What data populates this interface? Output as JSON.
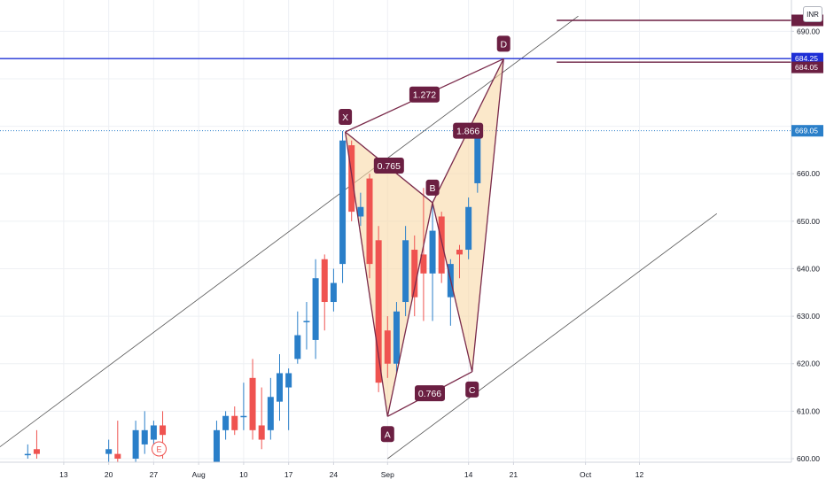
{
  "currency_button": "INR",
  "colors": {
    "up": "#2a7fc9",
    "down": "#ef5350",
    "grid": "#eef0f4",
    "pattern_line": "#7a2a4a",
    "pattern_fill": "#f9d9a6",
    "blue_line": "#1e2fd6",
    "channel": "#555555",
    "label_bg": "#6b1f42"
  },
  "chart_data": {
    "type": "candlestick",
    "y_axis": {
      "ticks": [
        600,
        610,
        620,
        630,
        640,
        650,
        660,
        690
      ],
      "tick_labels": [
        "600.00",
        "610.00",
        "620.00",
        "630.00",
        "640.00",
        "650.00",
        "660.00",
        "690.00"
      ],
      "ylim": [
        600,
        694
      ],
      "price_tags": [
        {
          "text": "684.25",
          "value": 684.25,
          "color": "#1e2fd6"
        },
        {
          "text": "684.05",
          "value": 682.4,
          "color": "#6b1f42"
        },
        {
          "text": "669.05",
          "value": 669.05,
          "color": "#2a7fc9"
        },
        {
          "text": "",
          "value": 692.3,
          "color": "#6b1f42"
        }
      ]
    },
    "x_axis": {
      "tick_labels": [
        {
          "text": "13",
          "index": 6
        },
        {
          "text": "20",
          "index": 11
        },
        {
          "text": "27",
          "index": 16
        },
        {
          "text": "Aug",
          "index": 21
        },
        {
          "text": "10",
          "index": 26
        },
        {
          "text": "17",
          "index": 31
        },
        {
          "text": "24",
          "index": 36
        },
        {
          "text": "Sep",
          "index": 42
        },
        {
          "text": "14",
          "index": 51
        },
        {
          "text": "21",
          "index": 56
        },
        {
          "text": "Oct",
          "index": 64
        },
        {
          "text": "12",
          "index": 70
        }
      ]
    },
    "candles": [
      {
        "i": 2,
        "o": 601,
        "h": 603,
        "l": 600,
        "c": 601
      },
      {
        "i": 3,
        "o": 602,
        "h": 606,
        "l": 600,
        "c": 601
      },
      {
        "i": 11,
        "o": 601,
        "h": 604,
        "l": 599,
        "c": 602
      },
      {
        "i": 12,
        "o": 601,
        "h": 608,
        "l": 598,
        "c": 600
      },
      {
        "i": 14,
        "o": 600,
        "h": 608,
        "l": 599,
        "c": 606
      },
      {
        "i": 15,
        "o": 603,
        "h": 610,
        "l": 601,
        "c": 606
      },
      {
        "i": 16,
        "o": 604,
        "h": 608,
        "l": 601,
        "c": 607
      },
      {
        "i": 17,
        "o": 607,
        "h": 610,
        "l": 600,
        "c": 605
      },
      {
        "i": 23,
        "o": 599,
        "h": 608,
        "l": 598,
        "c": 606
      },
      {
        "i": 24,
        "o": 606,
        "h": 610,
        "l": 604,
        "c": 609
      },
      {
        "i": 25,
        "o": 609,
        "h": 611,
        "l": 605,
        "c": 606
      },
      {
        "i": 26,
        "o": 609,
        "h": 616,
        "l": 606,
        "c": 609
      },
      {
        "i": 27,
        "o": 617,
        "h": 621,
        "l": 604,
        "c": 606
      },
      {
        "i": 28,
        "o": 607,
        "h": 615,
        "l": 602,
        "c": 604
      },
      {
        "i": 29,
        "o": 606,
        "h": 617,
        "l": 604,
        "c": 613
      },
      {
        "i": 30,
        "o": 612,
        "h": 622,
        "l": 608,
        "c": 618
      },
      {
        "i": 31,
        "o": 615,
        "h": 619,
        "l": 606,
        "c": 618
      },
      {
        "i": 32,
        "o": 621,
        "h": 631,
        "l": 620,
        "c": 626
      },
      {
        "i": 33,
        "o": 629,
        "h": 633,
        "l": 623,
        "c": 629
      },
      {
        "i": 34,
        "o": 625,
        "h": 642,
        "l": 621,
        "c": 638
      },
      {
        "i": 35,
        "o": 642,
        "h": 643,
        "l": 627,
        "c": 633
      },
      {
        "i": 36,
        "o": 633,
        "h": 640,
        "l": 631,
        "c": 637
      },
      {
        "i": 37,
        "o": 641,
        "h": 669,
        "l": 637,
        "c": 667
      },
      {
        "i": 38,
        "o": 666,
        "h": 667,
        "l": 650,
        "c": 652
      },
      {
        "i": 39,
        "o": 651,
        "h": 656,
        "l": 649,
        "c": 653
      },
      {
        "i": 40,
        "o": 659,
        "h": 660,
        "l": 638,
        "c": 641
      },
      {
        "i": 41,
        "o": 646,
        "h": 649,
        "l": 614,
        "c": 616
      },
      {
        "i": 42,
        "o": 627,
        "h": 630,
        "l": 617,
        "c": 620
      },
      {
        "i": 43,
        "o": 620,
        "h": 633,
        "l": 618,
        "c": 631
      },
      {
        "i": 44,
        "o": 633,
        "h": 649,
        "l": 630,
        "c": 646
      },
      {
        "i": 45,
        "o": 644,
        "h": 647,
        "l": 630,
        "c": 634
      },
      {
        "i": 46,
        "o": 643,
        "h": 657,
        "l": 629,
        "c": 639
      },
      {
        "i": 47,
        "o": 639,
        "h": 654,
        "l": 629,
        "c": 648
      },
      {
        "i": 48,
        "o": 651,
        "h": 652,
        "l": 637,
        "c": 639
      },
      {
        "i": 49,
        "o": 634,
        "h": 642,
        "l": 628,
        "c": 641
      },
      {
        "i": 50,
        "o": 644,
        "h": 645,
        "l": 638,
        "c": 643
      },
      {
        "i": 51,
        "o": 644,
        "h": 655,
        "l": 642,
        "c": 653
      },
      {
        "i": 52,
        "o": 658,
        "h": 669,
        "l": 656,
        "c": 668
      }
    ],
    "harmonic_pattern": {
      "points": {
        "X": {
          "i": 37.3,
          "v": 668.8
        },
        "A": {
          "i": 42.0,
          "v": 608.9
        },
        "B": {
          "i": 47.0,
          "v": 653.9
        },
        "C": {
          "i": 51.4,
          "v": 618.3
        },
        "D": {
          "i": 54.9,
          "v": 684.2
        }
      },
      "ratios": [
        "0.765",
        "1.272",
        "0.766",
        "1.866"
      ]
    },
    "earnings_marker": "E"
  }
}
